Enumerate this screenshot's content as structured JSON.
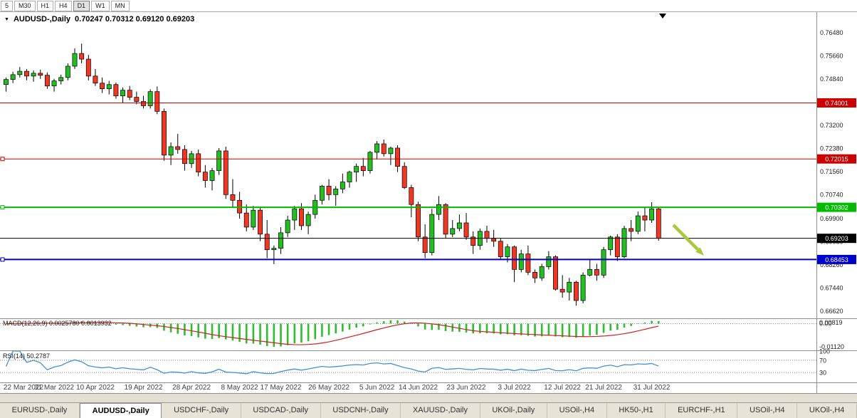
{
  "toolbar": {
    "timeframes": [
      "5",
      "M30",
      "H1",
      "H4",
      "D1",
      "W1",
      "MN"
    ],
    "active": "D1"
  },
  "chart": {
    "menu_icon": "▼",
    "title": "AUDUSD-,Daily",
    "ohlc_text": "0.70247 0.70312 0.69120 0.69203"
  },
  "macd": {
    "label": "MACD(12,26,9) 0.0025780 0.0013932",
    "axis_labels": [
      "0.00819",
      "0.00",
      "-0.01120"
    ]
  },
  "rsi": {
    "label": "RSI(14) 50.2787",
    "axis_labels": [
      "100",
      "70",
      "30"
    ],
    "levels": [
      70,
      30
    ]
  },
  "tabs": [
    {
      "label": "EURUSD-,Daily",
      "active": false
    },
    {
      "label": "AUDUSD-,Daily",
      "active": true
    },
    {
      "label": "USDCHF-,Daily",
      "active": false
    },
    {
      "label": "USDCAD-,Daily",
      "active": false
    },
    {
      "label": "USDCNH-,Daily",
      "active": false
    },
    {
      "label": "XAUUSD-,Daily",
      "active": false
    },
    {
      "label": "UKOil-,Daily",
      "active": false
    },
    {
      "label": "USOil-,H4",
      "active": false
    },
    {
      "label": "HK50-,H1",
      "active": false
    },
    {
      "label": "EURCHF-,H1",
      "active": false
    },
    {
      "label": "USOil-,H4",
      "active": false
    },
    {
      "label": "UKOil-,H4",
      "active": false
    }
  ],
  "chart_data": {
    "type": "candlestick",
    "symbol": "AUDUSD-",
    "timeframe": "Daily",
    "price_axis": {
      "min": 0.6637,
      "max": 0.7709,
      "labels": [
        "0.76480",
        "0.75660",
        "0.74840",
        "0.73200",
        "0.72380",
        "0.71560",
        "0.70740",
        "0.69900",
        "0.69080",
        "0.68260",
        "0.67440",
        "0.66620"
      ]
    },
    "h_lines": [
      {
        "price": 0.74001,
        "label": "0.74001",
        "color": "#CC0000",
        "width": 1,
        "handle": false
      },
      {
        "price": 0.72015,
        "label": "0.72015",
        "color": "#CC0000",
        "width": 1,
        "handle": true
      },
      {
        "price": 0.70302,
        "label": "0.70302",
        "color": "#00BB00",
        "width": 2,
        "handle": true
      },
      {
        "price": 0.69203,
        "label": "0.69203",
        "color": "#000000",
        "width": 1,
        "handle": false
      },
      {
        "price": 0.68453,
        "label": "0.68453",
        "color": "#0000CC",
        "width": 2,
        "handle": true
      }
    ],
    "date_labels": [
      [
        "22 Mar 2022",
        0
      ],
      [
        "31 Mar 2022",
        7
      ],
      [
        "10 Apr 2022",
        13
      ],
      [
        "19 Apr 2022",
        20
      ],
      [
        "28 Apr 2022",
        27
      ],
      [
        "8 May 2022",
        34
      ],
      [
        "17 May 2022",
        40
      ],
      [
        "26 May 2022",
        47
      ],
      [
        "5 Jun 2022",
        54
      ],
      [
        "14 Jun 2022",
        60
      ],
      [
        "23 Jun 2022",
        67
      ],
      [
        "3 Jul 2022",
        74
      ],
      [
        "12 Jul 2022",
        81
      ],
      [
        "21 Jul 2022",
        87
      ],
      [
        "31 Jul 2022",
        94
      ]
    ],
    "colors": {
      "up": "#22BE22",
      "down": "#EF3724",
      "outline": "#000000",
      "macd_hist": "#2FBE2F",
      "macd_signal": "#D02020",
      "rsi_line": "#4390D4"
    },
    "arrow": {
      "color": "#A9C93B"
    },
    "indicators": [
      {
        "name": "MACD",
        "params": "12,26,9"
      },
      {
        "name": "RSI",
        "params": "14"
      }
    ],
    "candles": [
      [
        0.7465,
        0.749,
        0.744,
        0.7483
      ],
      [
        0.7483,
        0.751,
        0.747,
        0.75
      ],
      [
        0.75,
        0.7527,
        0.749,
        0.7512
      ],
      [
        0.7512,
        0.752,
        0.748,
        0.7495
      ],
      [
        0.7495,
        0.7515,
        0.7475,
        0.7505
      ],
      [
        0.7505,
        0.7518,
        0.7485,
        0.7498
      ],
      [
        0.7498,
        0.7508,
        0.745,
        0.746
      ],
      [
        0.746,
        0.7485,
        0.744,
        0.7478
      ],
      [
        0.7478,
        0.75,
        0.7465,
        0.749
      ],
      [
        0.749,
        0.754,
        0.748,
        0.753
      ],
      [
        0.753,
        0.7593,
        0.752,
        0.7575
      ],
      [
        0.7575,
        0.761,
        0.754,
        0.7555
      ],
      [
        0.7555,
        0.757,
        0.748,
        0.7495
      ],
      [
        0.7495,
        0.752,
        0.746,
        0.747
      ],
      [
        0.747,
        0.749,
        0.7435,
        0.745
      ],
      [
        0.745,
        0.7478,
        0.743,
        0.7465
      ],
      [
        0.7465,
        0.7472,
        0.7415,
        0.7425
      ],
      [
        0.7425,
        0.7455,
        0.74,
        0.7445
      ],
      [
        0.7445,
        0.746,
        0.741,
        0.742
      ],
      [
        0.742,
        0.744,
        0.7395,
        0.7405
      ],
      [
        0.7405,
        0.7425,
        0.738,
        0.739
      ],
      [
        0.739,
        0.7448,
        0.738,
        0.744
      ],
      [
        0.744,
        0.7458,
        0.736,
        0.737
      ],
      [
        0.737,
        0.738,
        0.7195,
        0.7215
      ],
      [
        0.7215,
        0.726,
        0.718,
        0.7245
      ],
      [
        0.7245,
        0.729,
        0.722,
        0.7235
      ],
      [
        0.7235,
        0.725,
        0.716,
        0.7185
      ],
      [
        0.7185,
        0.723,
        0.717,
        0.722
      ],
      [
        0.722,
        0.7235,
        0.714,
        0.7155
      ],
      [
        0.7155,
        0.718,
        0.71,
        0.7125
      ],
      [
        0.7125,
        0.717,
        0.709,
        0.716
      ],
      [
        0.716,
        0.724,
        0.7145,
        0.723
      ],
      [
        0.723,
        0.7245,
        0.706,
        0.7075
      ],
      [
        0.7075,
        0.713,
        0.703,
        0.7055
      ],
      [
        0.7055,
        0.7085,
        0.699,
        0.701
      ],
      [
        0.701,
        0.704,
        0.6945,
        0.696
      ],
      [
        0.696,
        0.7035,
        0.695,
        0.702
      ],
      [
        0.702,
        0.703,
        0.691,
        0.6935
      ],
      [
        0.6935,
        0.6985,
        0.685,
        0.688
      ],
      [
        0.688,
        0.6895,
        0.6829,
        0.6885
      ],
      [
        0.6885,
        0.696,
        0.6865,
        0.694
      ],
      [
        0.694,
        0.7,
        0.6925,
        0.6985
      ],
      [
        0.6985,
        0.7035,
        0.695,
        0.7025
      ],
      [
        0.7025,
        0.7045,
        0.695,
        0.6965
      ],
      [
        0.6965,
        0.7015,
        0.6935,
        0.7005
      ],
      [
        0.7005,
        0.7075,
        0.699,
        0.7055
      ],
      [
        0.7055,
        0.711,
        0.704,
        0.7105
      ],
      [
        0.7105,
        0.713,
        0.7055,
        0.7075
      ],
      [
        0.7075,
        0.7105,
        0.7035,
        0.7095
      ],
      [
        0.7095,
        0.715,
        0.708,
        0.712
      ],
      [
        0.712,
        0.716,
        0.71,
        0.7155
      ],
      [
        0.7155,
        0.7185,
        0.712,
        0.7175
      ],
      [
        0.7175,
        0.7205,
        0.714,
        0.716
      ],
      [
        0.716,
        0.723,
        0.715,
        0.7225
      ],
      [
        0.7225,
        0.7265,
        0.72,
        0.7255
      ],
      [
        0.7255,
        0.727,
        0.721,
        0.722
      ],
      [
        0.722,
        0.7245,
        0.718,
        0.724
      ],
      [
        0.724,
        0.725,
        0.7155,
        0.7175
      ],
      [
        0.7175,
        0.719,
        0.7095,
        0.71
      ],
      [
        0.71,
        0.711,
        0.6995,
        0.704
      ],
      [
        0.704,
        0.705,
        0.691,
        0.6925
      ],
      [
        0.6925,
        0.697,
        0.685,
        0.687
      ],
      [
        0.687,
        0.7025,
        0.686,
        0.7005
      ],
      [
        0.7005,
        0.707,
        0.6985,
        0.704
      ],
      [
        0.704,
        0.7045,
        0.692,
        0.6935
      ],
      [
        0.6935,
        0.6985,
        0.6925,
        0.6955
      ],
      [
        0.6955,
        0.7005,
        0.6945,
        0.6975
      ],
      [
        0.6975,
        0.701,
        0.6915,
        0.6925
      ],
      [
        0.6925,
        0.6945,
        0.6865,
        0.6895
      ],
      [
        0.6895,
        0.6955,
        0.688,
        0.6945
      ],
      [
        0.6945,
        0.6965,
        0.6905,
        0.692
      ],
      [
        0.692,
        0.695,
        0.689,
        0.691
      ],
      [
        0.691,
        0.692,
        0.6845,
        0.6855
      ],
      [
        0.6855,
        0.69,
        0.6835,
        0.689
      ],
      [
        0.689,
        0.6895,
        0.6765,
        0.681
      ],
      [
        0.681,
        0.688,
        0.68,
        0.6865
      ],
      [
        0.6865,
        0.6895,
        0.679,
        0.68
      ],
      [
        0.68,
        0.681,
        0.6762,
        0.678
      ],
      [
        0.678,
        0.683,
        0.677,
        0.682
      ],
      [
        0.682,
        0.6875,
        0.681,
        0.6855
      ],
      [
        0.6855,
        0.686,
        0.6735,
        0.674
      ],
      [
        0.674,
        0.679,
        0.671,
        0.673
      ],
      [
        0.673,
        0.678,
        0.67,
        0.6765
      ],
      [
        0.6765,
        0.677,
        0.6682,
        0.67
      ],
      [
        0.67,
        0.68,
        0.669,
        0.679
      ],
      [
        0.679,
        0.6845,
        0.6785,
        0.681
      ],
      [
        0.681,
        0.683,
        0.677,
        0.679
      ],
      [
        0.679,
        0.689,
        0.678,
        0.688
      ],
      [
        0.688,
        0.693,
        0.686,
        0.6925
      ],
      [
        0.6925,
        0.6935,
        0.684,
        0.6855
      ],
      [
        0.6855,
        0.6965,
        0.685,
        0.6955
      ],
      [
        0.6955,
        0.6985,
        0.691,
        0.6945
      ],
      [
        0.6945,
        0.7015,
        0.6935,
        0.7
      ],
      [
        0.7,
        0.7032,
        0.6945,
        0.6985
      ],
      [
        0.6985,
        0.7048,
        0.6975,
        0.7025
      ],
      [
        0.70247,
        0.70312,
        0.6912,
        0.69203
      ]
    ]
  }
}
